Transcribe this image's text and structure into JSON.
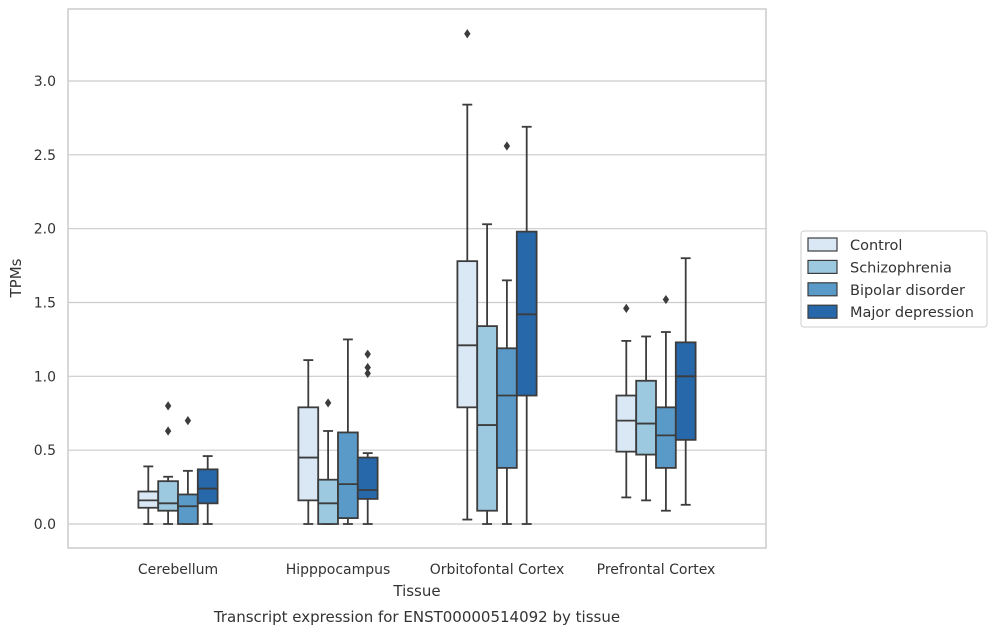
{
  "chart_data": {
    "type": "boxplot",
    "caption": "Transcript expression for ENST00000514092 by tissue",
    "xlabel": "Tissue",
    "ylabel": "TPMs",
    "ylim": [
      -0.16,
      3.5
    ],
    "yticks": [
      0.0,
      0.5,
      1.0,
      1.5,
      2.0,
      2.5,
      3.0
    ],
    "ytick_labels": [
      "0.0",
      "0.5",
      "1.0",
      "1.5",
      "2.0",
      "2.5",
      "3.0"
    ],
    "grid": "horizontal",
    "legend_position": "right",
    "categories": [
      "Cerebellum",
      "Hipppocampus",
      "Orbitofontal Cortex",
      "Prefrontal Cortex"
    ],
    "series": [
      {
        "name": "Control",
        "color": "#dae8f5",
        "boxes": [
          {
            "whislo": 0.0,
            "q1": 0.11,
            "med": 0.16,
            "q3": 0.22,
            "whishi": 0.39,
            "fliers": []
          },
          {
            "whislo": 0.0,
            "q1": 0.16,
            "med": 0.45,
            "q3": 0.79,
            "whishi": 1.11,
            "fliers": []
          },
          {
            "whislo": 0.03,
            "q1": 0.79,
            "med": 1.21,
            "q3": 1.78,
            "whishi": 2.84,
            "fliers": [
              3.32
            ]
          },
          {
            "whislo": 0.18,
            "q1": 0.49,
            "med": 0.7,
            "q3": 0.87,
            "whishi": 1.24,
            "fliers": [
              1.46
            ]
          }
        ]
      },
      {
        "name": "Schizophrenia",
        "color": "#9cc9e0",
        "boxes": [
          {
            "whislo": 0.0,
            "q1": 0.09,
            "med": 0.14,
            "q3": 0.29,
            "whishi": 0.32,
            "fliers": [
              0.63,
              0.8
            ]
          },
          {
            "whislo": 0.0,
            "q1": 0.0,
            "med": 0.14,
            "q3": 0.3,
            "whishi": 0.63,
            "fliers": [
              0.82
            ]
          },
          {
            "whislo": 0.0,
            "q1": 0.09,
            "med": 0.67,
            "q3": 1.34,
            "whishi": 2.03,
            "fliers": []
          },
          {
            "whislo": 0.16,
            "q1": 0.47,
            "med": 0.68,
            "q3": 0.97,
            "whishi": 1.27,
            "fliers": []
          }
        ]
      },
      {
        "name": "Bipolar disorder",
        "color": "#5a9ac8",
        "boxes": [
          {
            "whislo": 0.0,
            "q1": 0.0,
            "med": 0.12,
            "q3": 0.2,
            "whishi": 0.36,
            "fliers": [
              0.7
            ]
          },
          {
            "whislo": 0.0,
            "q1": 0.04,
            "med": 0.27,
            "q3": 0.62,
            "whishi": 1.25,
            "fliers": []
          },
          {
            "whislo": 0.0,
            "q1": 0.38,
            "med": 0.87,
            "q3": 1.19,
            "whishi": 1.65,
            "fliers": [
              2.56
            ]
          },
          {
            "whislo": 0.09,
            "q1": 0.38,
            "med": 0.6,
            "q3": 0.79,
            "whishi": 1.3,
            "fliers": [
              1.52
            ]
          }
        ]
      },
      {
        "name": "Major depression",
        "color": "#2768aa",
        "boxes": [
          {
            "whislo": 0.0,
            "q1": 0.14,
            "med": 0.24,
            "q3": 0.37,
            "whishi": 0.46,
            "fliers": []
          },
          {
            "whislo": 0.0,
            "q1": 0.17,
            "med": 0.23,
            "q3": 0.45,
            "whishi": 0.48,
            "fliers": [
              1.02,
              1.06,
              1.15
            ]
          },
          {
            "whislo": 0.0,
            "q1": 0.87,
            "med": 1.42,
            "q3": 1.98,
            "whishi": 2.69,
            "fliers": []
          },
          {
            "whislo": 0.13,
            "q1": 0.57,
            "med": 1.0,
            "q3": 1.23,
            "whishi": 1.8,
            "fliers": []
          }
        ]
      }
    ]
  }
}
